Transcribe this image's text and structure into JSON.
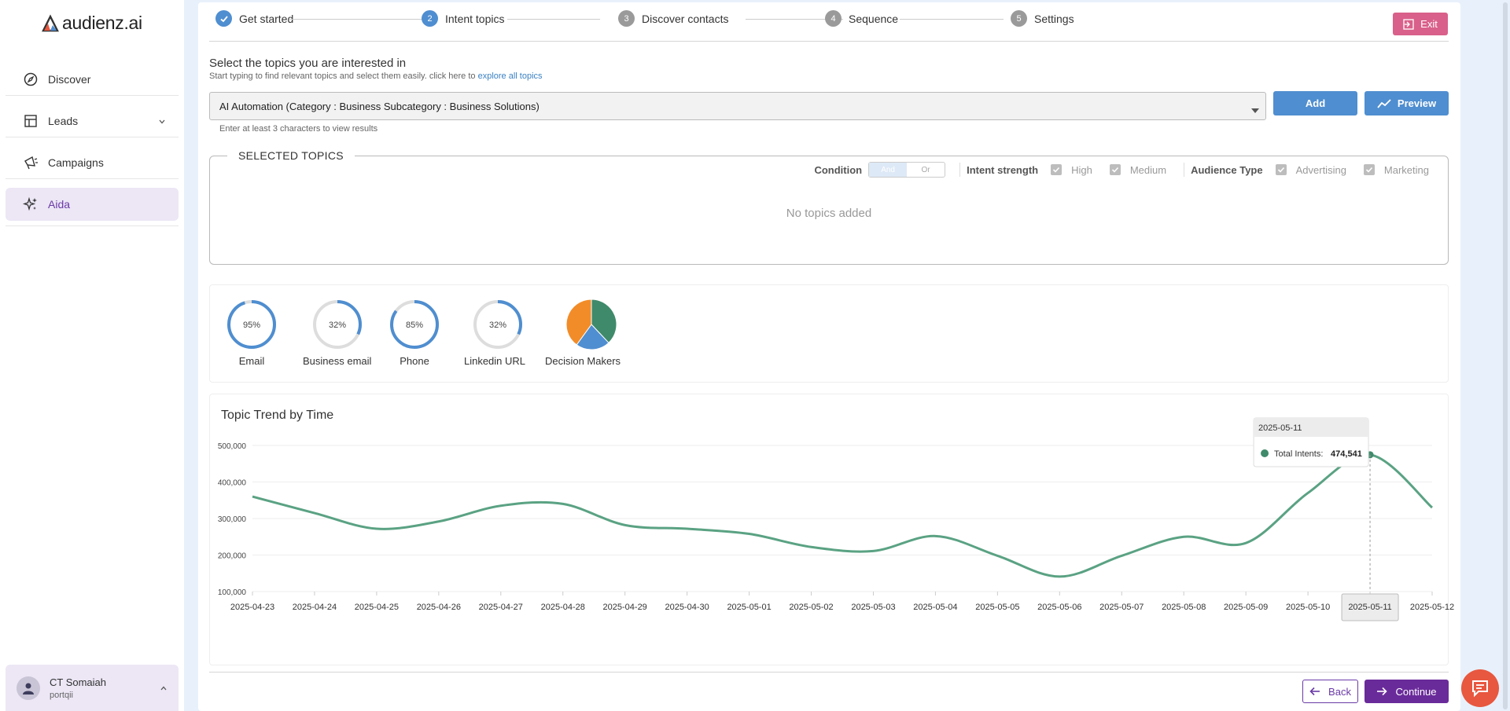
{
  "app": {
    "brand": "audienz.ai"
  },
  "sidebar": {
    "items": [
      {
        "label": "Discover",
        "icon": "compass-icon"
      },
      {
        "label": "Leads",
        "icon": "table-icon"
      },
      {
        "label": "Campaigns",
        "icon": "megaphone-icon"
      },
      {
        "label": "Aida",
        "icon": "sparkles-icon"
      }
    ],
    "user": {
      "name": "CT Somaiah",
      "org": "portqii"
    }
  },
  "stepper": {
    "steps": [
      {
        "num": "1",
        "label": "Get started"
      },
      {
        "num": "2",
        "label": "Intent topics"
      },
      {
        "num": "3",
        "label": "Discover contacts"
      },
      {
        "num": "4",
        "label": "Sequence"
      },
      {
        "num": "5",
        "label": "Settings"
      }
    ],
    "exit_label": "Exit"
  },
  "topics": {
    "title": "Select the topics you are interested in",
    "subtitle": "Start typing to find relevant topics and select them easily. click here to",
    "subtitle_link": "explore all topics",
    "input_value": "AI Automation (Category : Business   Subcategory : Business Solutions)",
    "add_label": "Add",
    "preview_label": "Preview",
    "hint": "Enter at least 3 characters to view results"
  },
  "selected": {
    "legend": "SELECTED TOPICS",
    "condition_label": "Condition",
    "condition_options": [
      "And",
      "Or"
    ],
    "intent_label": "Intent strength",
    "intent_options": [
      "High",
      "Medium"
    ],
    "audience_label": "Audience Type",
    "audience_options": [
      "Advertising",
      "Marketing"
    ],
    "empty_text": "No topics added"
  },
  "stats": [
    {
      "label": "Email",
      "value_text": "95%",
      "value": 95
    },
    {
      "label": "Business email",
      "value_text": "32%",
      "value": 32
    },
    {
      "label": "Phone",
      "value_text": "85%",
      "value": 85
    },
    {
      "label": "Linkedin URL",
      "value_text": "32%",
      "value": 32
    }
  ],
  "decision_makers": {
    "label": "Decision Makers",
    "slices": [
      {
        "value": 38,
        "color": "#3f8a6a"
      },
      {
        "value": 22,
        "color": "#4f8ed0"
      },
      {
        "value": 40,
        "color": "#f28c28"
      }
    ]
  },
  "colors": {
    "accent": "#4f8ed0",
    "purple": "#6a2b9a",
    "line": "#5aa283",
    "exit": "#d9608a"
  },
  "chart_data": {
    "type": "line",
    "title": "Topic Trend by Time",
    "x": [
      "2025-04-23",
      "2025-04-24",
      "2025-04-25",
      "2025-04-26",
      "2025-04-27",
      "2025-04-28",
      "2025-04-29",
      "2025-04-30",
      "2025-05-01",
      "2025-05-02",
      "2025-05-03",
      "2025-05-04",
      "2025-05-05",
      "2025-05-06",
      "2025-05-07",
      "2025-05-08",
      "2025-05-09",
      "2025-05-10",
      "2025-05-11",
      "2025-05-12"
    ],
    "series": [
      {
        "name": "Total Intents",
        "values": [
          360000,
          315000,
          272000,
          292000,
          335000,
          340000,
          282000,
          272000,
          258000,
          222000,
          211000,
          252000,
          198000,
          141000,
          198000,
          250000,
          233000,
          370000,
          474541,
          330000
        ]
      }
    ],
    "ylim": [
      100000,
      500000
    ],
    "yticks": [
      100000,
      200000,
      300000,
      400000,
      500000
    ],
    "ytick_labels": [
      "100,000",
      "200,000",
      "300,000",
      "400,000",
      "500,000"
    ],
    "tooltip": {
      "date": "2025-05-11",
      "label": "Total Intents:",
      "value": "474,541"
    }
  },
  "footer": {
    "back_label": "Back",
    "continue_label": "Continue"
  }
}
